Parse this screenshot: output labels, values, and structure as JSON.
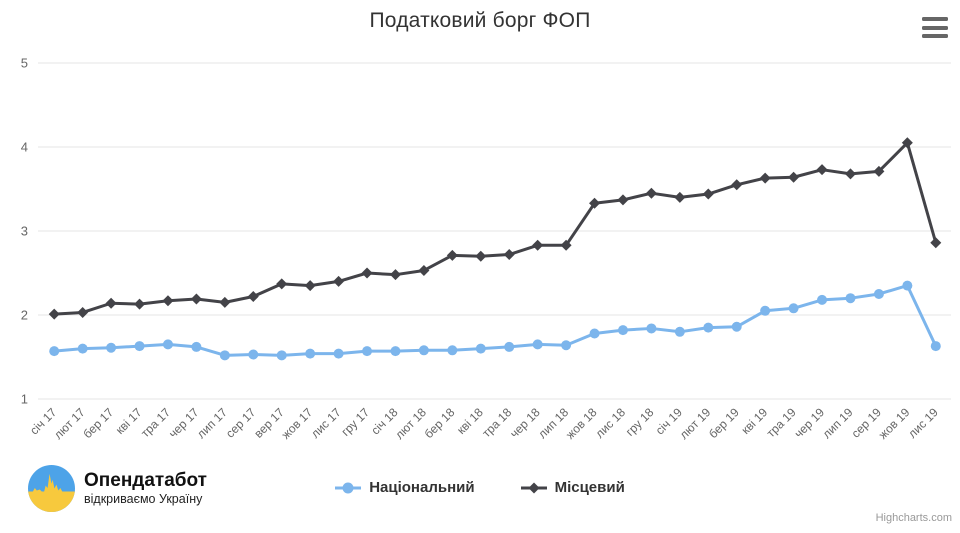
{
  "title": "Податковий борг ФОП",
  "credit": "Highcharts.com",
  "logo": {
    "name": "Опендатабот",
    "tagline": "відкриваємо Україну",
    "colors": {
      "blue": "#4da3e8",
      "yellow": "#f7c93d"
    }
  },
  "axis": {
    "label_color": "#666666",
    "grid_color": "#e6e6e6"
  },
  "chart_data": {
    "type": "line",
    "title": "Податковий борг ФОП",
    "xlabel": "",
    "ylabel": "",
    "ylim": [
      1,
      5
    ],
    "yticks": [
      1,
      2,
      3,
      4,
      5
    ],
    "grid": true,
    "legend_position": "bottom",
    "categories": [
      "січ 17",
      "лют 17",
      "бер 17",
      "кві 17",
      "тра 17",
      "чер 17",
      "лип 17",
      "сер 17",
      "вер 17",
      "жов 17",
      "лис 17",
      "гру 17",
      "січ 18",
      "лют 18",
      "бер 18",
      "кві 18",
      "тра 18",
      "чер 18",
      "лип 18",
      "жов 18",
      "лис 18",
      "гру 18",
      "січ 19",
      "лют 19",
      "бер 19",
      "кві 19",
      "тра 19",
      "чер 19",
      "лип 19",
      "сер 19",
      "жов 19",
      "лис 19"
    ],
    "series": [
      {
        "name": "Національний",
        "color": "#7cb5ec",
        "marker": "circle",
        "values": [
          1.57,
          1.6,
          1.61,
          1.63,
          1.65,
          1.62,
          1.52,
          1.53,
          1.52,
          1.54,
          1.54,
          1.57,
          1.57,
          1.58,
          1.58,
          1.6,
          1.62,
          1.65,
          1.64,
          1.78,
          1.82,
          1.84,
          1.8,
          1.85,
          1.86,
          2.05,
          2.08,
          2.18,
          2.2,
          2.25,
          2.35,
          1.63
        ]
      },
      {
        "name": "Місцевий",
        "color": "#434348",
        "marker": "diamond",
        "values": [
          2.01,
          2.03,
          2.14,
          2.13,
          2.17,
          2.19,
          2.15,
          2.22,
          2.37,
          2.35,
          2.4,
          2.5,
          2.48,
          2.53,
          2.71,
          2.7,
          2.72,
          2.83,
          2.83,
          3.33,
          3.37,
          3.45,
          3.4,
          3.44,
          3.55,
          3.63,
          3.64,
          3.73,
          3.68,
          3.71,
          4.05,
          2.86
        ]
      }
    ]
  }
}
